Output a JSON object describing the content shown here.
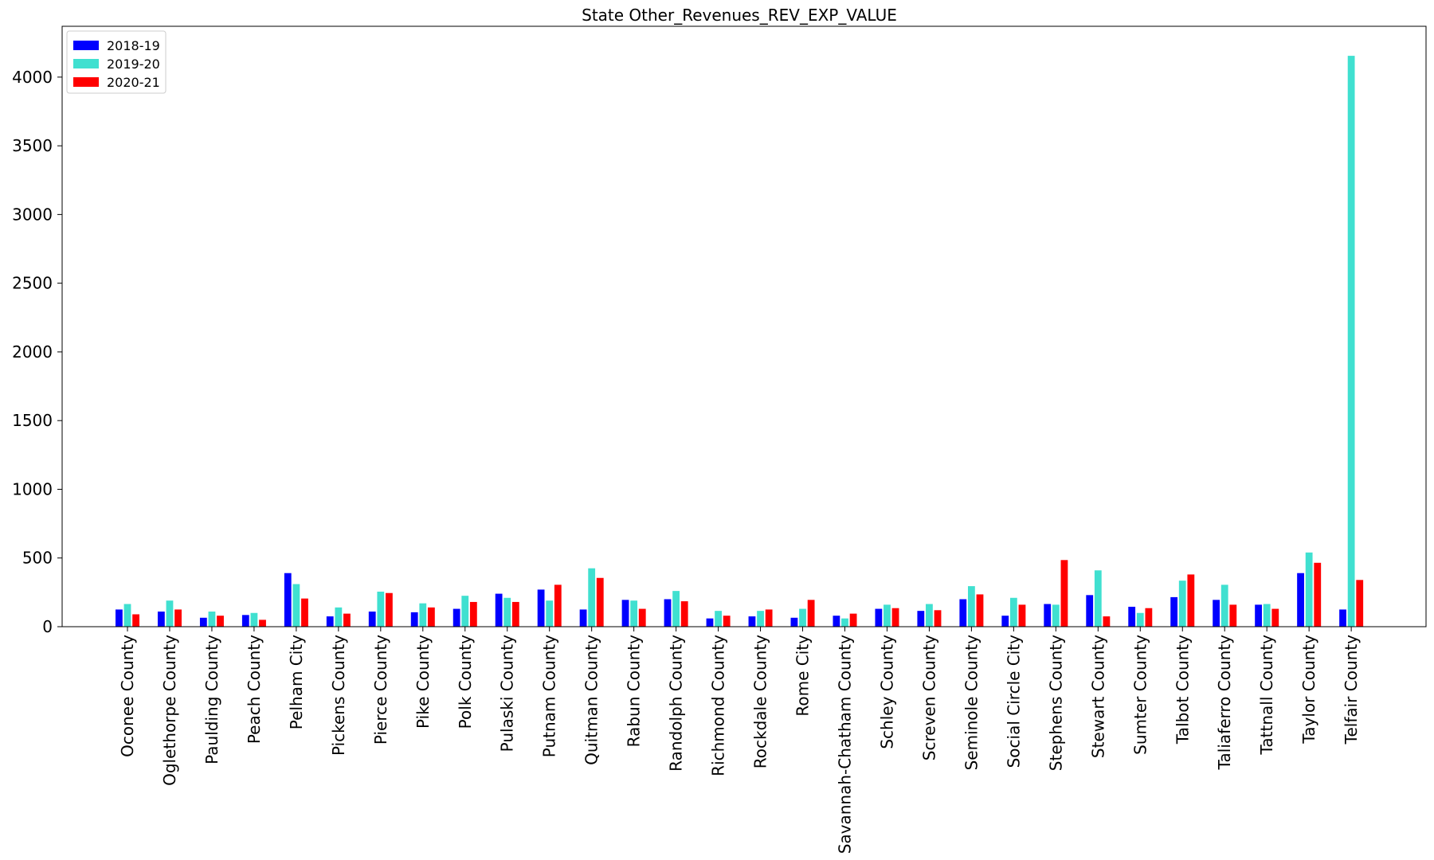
{
  "chart_data": {
    "type": "bar",
    "title": "State Other_Revenues_REV_EXP_VALUE",
    "xlabel": "",
    "ylabel": "",
    "ylim": [
      0,
      4370
    ],
    "yticks": [
      0,
      500,
      1000,
      1500,
      2000,
      2500,
      3000,
      3500,
      4000
    ],
    "legend_position": "top-left",
    "grid": false,
    "categories": [
      "Oconee County",
      "Oglethorpe County",
      "Paulding County",
      "Peach County",
      "Pelham City",
      "Pickens County",
      "Pierce County",
      "Pike County",
      "Polk County",
      "Pulaski County",
      "Putnam County",
      "Quitman County",
      "Rabun County",
      "Randolph County",
      "Richmond County",
      "Rockdale County",
      "Rome City",
      "Savannah-Chatham County",
      "Schley County",
      "Screven County",
      "Seminole County",
      "Social Circle City",
      "Stephens County",
      "Stewart County",
      "Sumter County",
      "Talbot County",
      "Taliaferro County",
      "Tattnall County",
      "Taylor County",
      "Telfair County"
    ],
    "series": [
      {
        "name": "2018-19",
        "color": "#0000ff",
        "values": [
          125,
          110,
          65,
          85,
          390,
          75,
          110,
          105,
          130,
          240,
          270,
          125,
          195,
          200,
          60,
          75,
          65,
          80,
          130,
          115,
          200,
          80,
          165,
          230,
          145,
          215,
          195,
          160,
          390,
          125
        ]
      },
      {
        "name": "2019-20",
        "color": "#40e0d0",
        "values": [
          165,
          190,
          110,
          100,
          310,
          140,
          255,
          170,
          225,
          210,
          190,
          425,
          190,
          260,
          115,
          115,
          130,
          60,
          160,
          165,
          295,
          210,
          160,
          410,
          100,
          335,
          305,
          165,
          540,
          4155
        ]
      },
      {
        "name": "2020-21",
        "color": "#ff0000",
        "values": [
          90,
          125,
          80,
          50,
          205,
          95,
          245,
          140,
          180,
          180,
          305,
          355,
          130,
          185,
          80,
          125,
          195,
          95,
          135,
          120,
          235,
          160,
          485,
          75,
          135,
          380,
          160,
          130,
          465,
          340
        ]
      }
    ]
  }
}
